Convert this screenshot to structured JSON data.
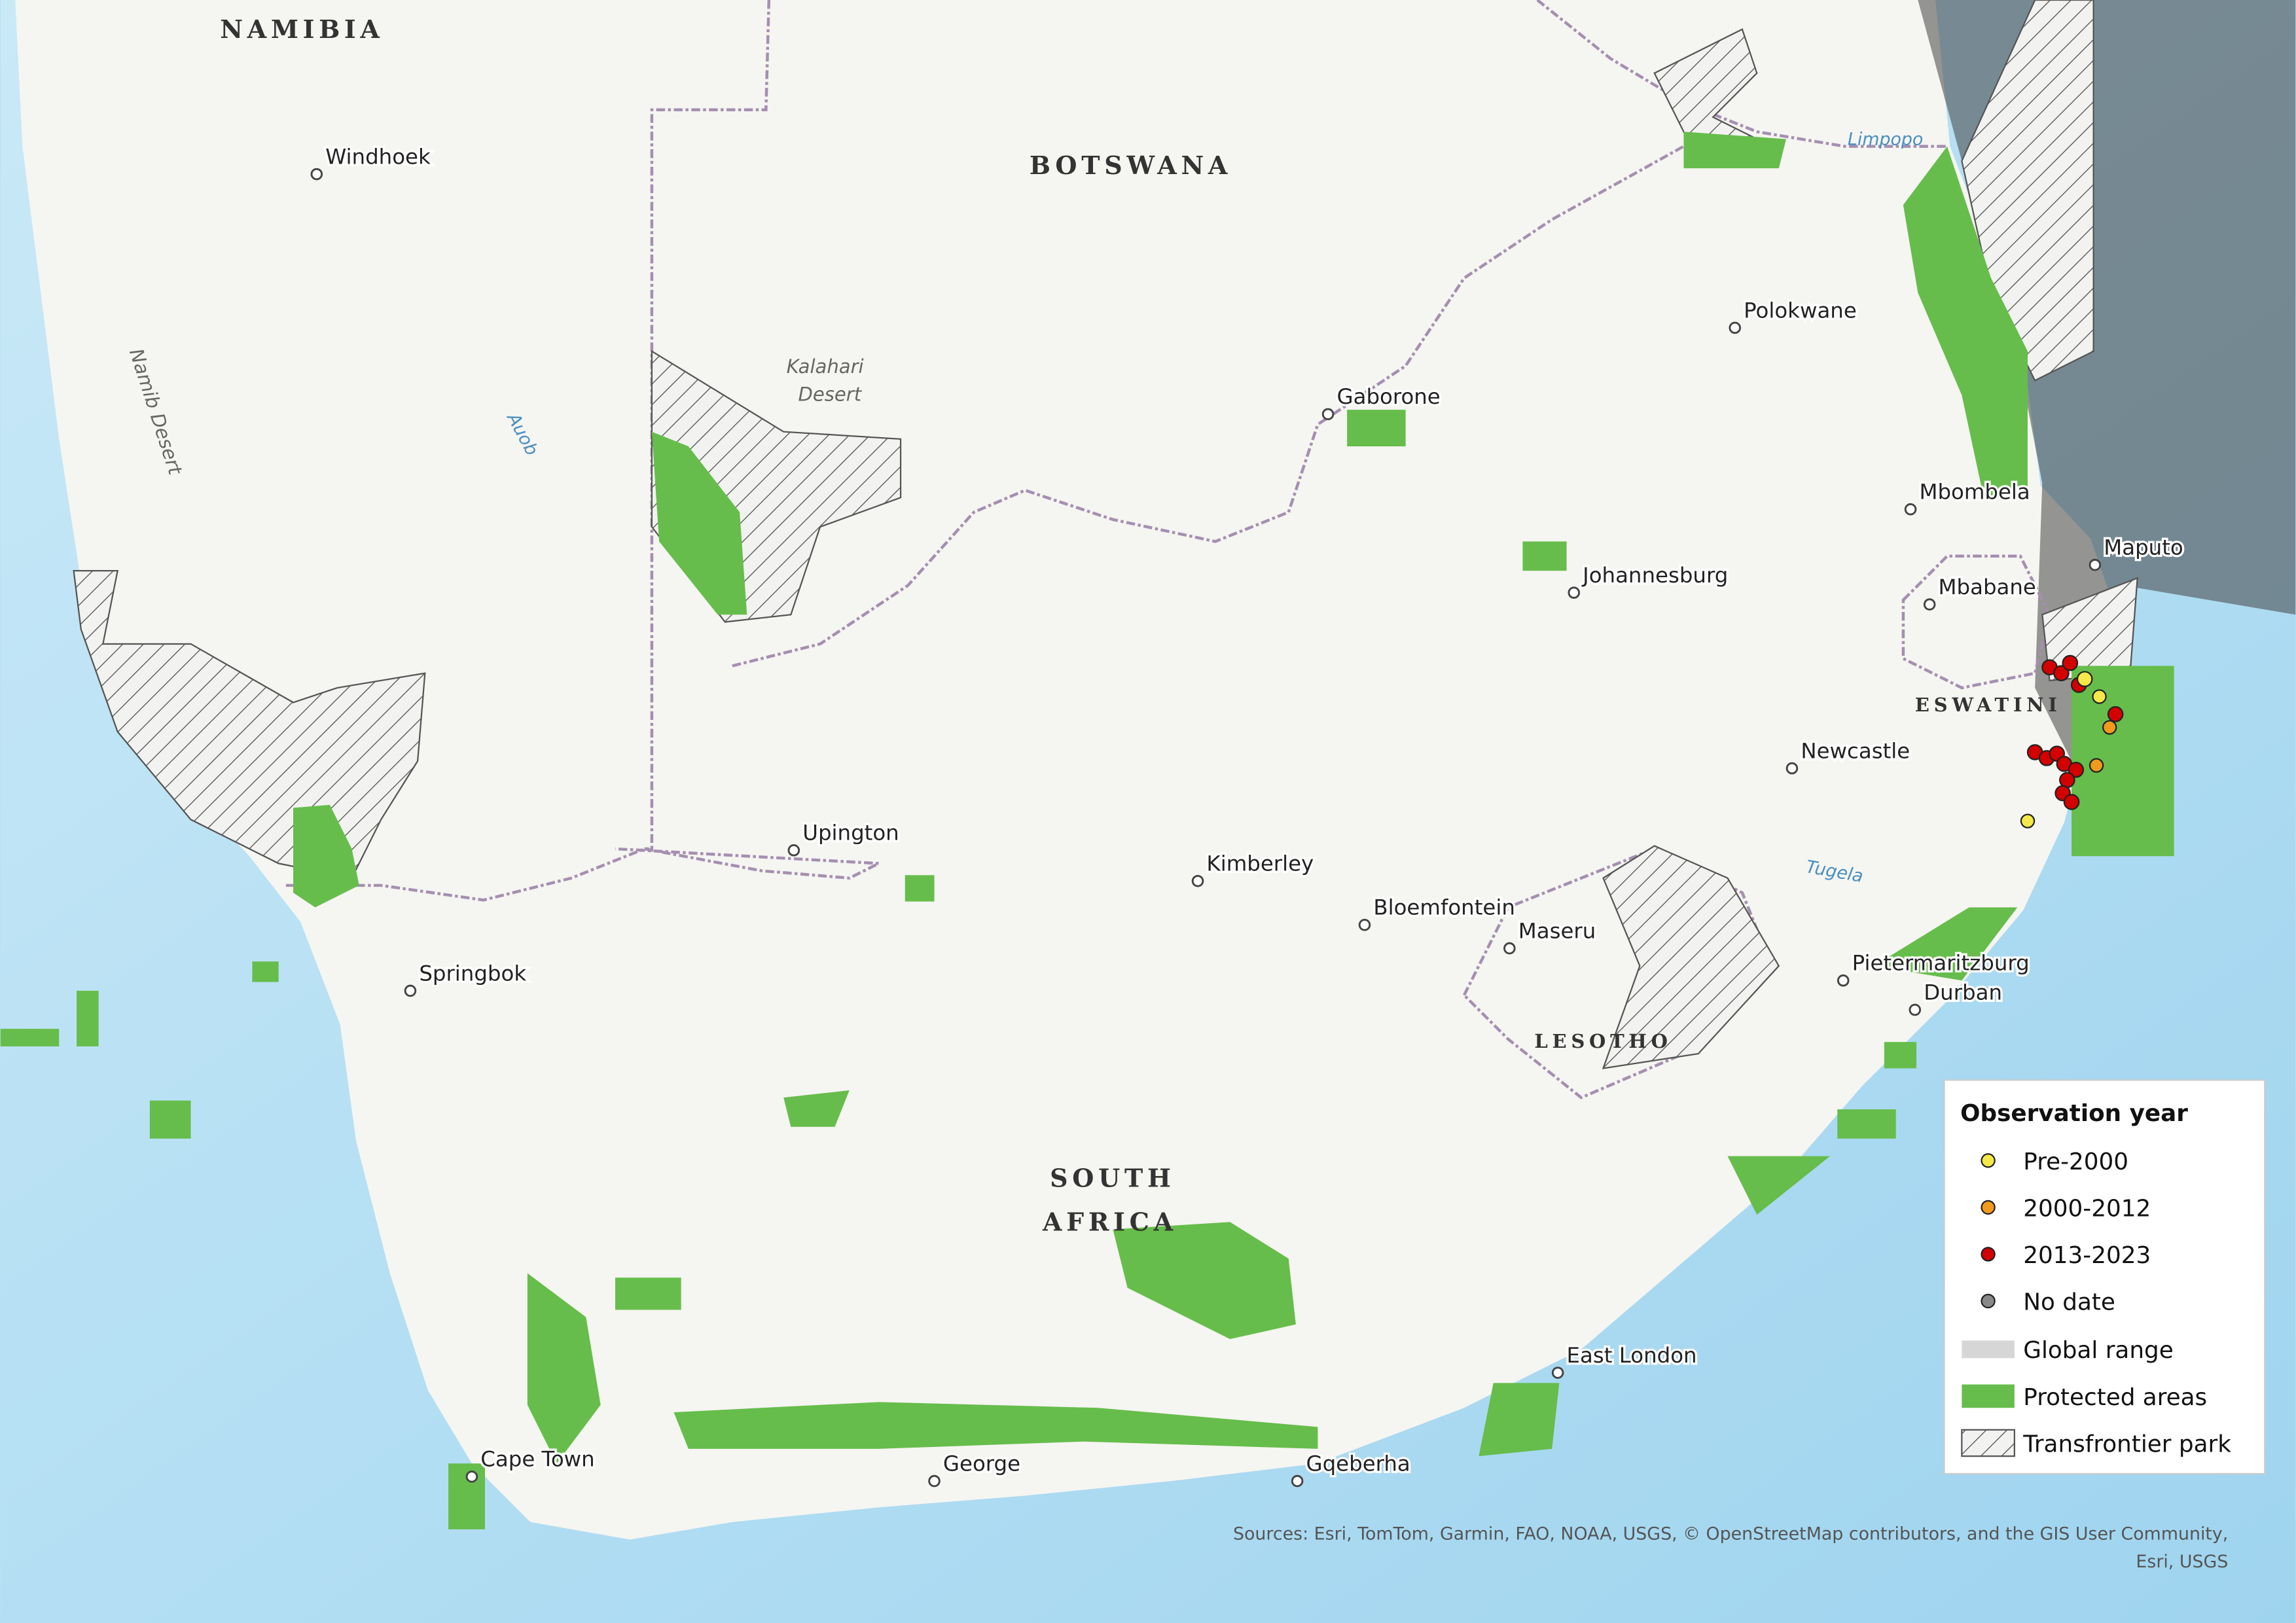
{
  "countries": {
    "namibia": "NAMIBIA",
    "botswana": "BOTSWANA",
    "south_africa": [
      "SOUTH",
      "AFRICA"
    ],
    "lesotho": "LESOTHO",
    "eswatini": "ESWATINI"
  },
  "places": [
    "Windhoek",
    "Gaborone",
    "Polokwane",
    "Mbombela",
    "Maputo",
    "Mbabane",
    "Johannesburg",
    "Newcastle",
    "Upington",
    "Kimberley",
    "Bloemfontein",
    "Maseru",
    "Pietermaritzburg",
    "Durban",
    "Springbok",
    "East London",
    "Cape Town",
    "George",
    "Gqeberha"
  ],
  "physical": {
    "kalahari": [
      "Kalahari",
      "Desert"
    ],
    "namib": "Namib Desert",
    "auob": "Auob",
    "limpopo": "Limpopo",
    "tugela": "Tugela"
  },
  "legend": {
    "title": "Observation year",
    "items": [
      "Pre-2000",
      "2000-2012",
      "2013-2023",
      "No date",
      "Global range",
      "Protected areas",
      "Transfrontier park"
    ]
  },
  "sources": [
    "Sources: Esri, TomTom, Garmin, FAO, NOAA, USGS, © OpenStreetMap contributors, and the GIS User Community,",
    "Esri, USGS"
  ]
}
